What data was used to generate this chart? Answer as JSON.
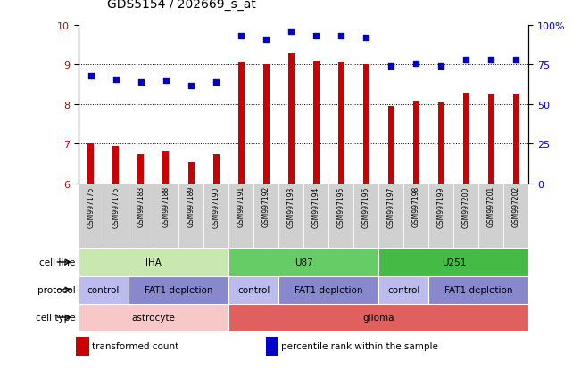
{
  "title": "GDS5154 / 202669_s_at",
  "samples": [
    "GSM997175",
    "GSM997176",
    "GSM997183",
    "GSM997188",
    "GSM997189",
    "GSM997190",
    "GSM997191",
    "GSM997192",
    "GSM997193",
    "GSM997194",
    "GSM997195",
    "GSM997196",
    "GSM997197",
    "GSM997198",
    "GSM997199",
    "GSM997200",
    "GSM997201",
    "GSM997202"
  ],
  "bar_values": [
    7.0,
    6.95,
    6.75,
    6.8,
    6.55,
    6.75,
    9.05,
    9.0,
    9.3,
    9.1,
    9.05,
    9.0,
    7.95,
    8.1,
    8.05,
    8.3,
    8.25,
    8.25
  ],
  "dot_values": [
    68,
    66,
    64,
    65,
    62,
    64,
    93,
    91,
    96,
    93,
    93,
    92,
    74,
    76,
    74,
    78,
    78,
    78
  ],
  "ylim_left": [
    6,
    10
  ],
  "ylim_right": [
    0,
    100
  ],
  "yticks_left": [
    6,
    7,
    8,
    9,
    10
  ],
  "yticks_right": [
    0,
    25,
    50,
    75,
    100
  ],
  "bar_color": "#cc0000",
  "dot_color": "#0000cc",
  "bg_color": "#ffffff",
  "grid_color": "#000000",
  "sample_bg_color": "#d0d0d0",
  "cell_line_groups": [
    {
      "label": "IHA",
      "start": 0,
      "end": 6,
      "color": "#c8e8b0"
    },
    {
      "label": "U87",
      "start": 6,
      "end": 12,
      "color": "#66cc66"
    },
    {
      "label": "U251",
      "start": 12,
      "end": 18,
      "color": "#44bb44"
    }
  ],
  "protocol_groups": [
    {
      "label": "control",
      "start": 0,
      "end": 2,
      "color": "#bbbbee"
    },
    {
      "label": "FAT1 depletion",
      "start": 2,
      "end": 6,
      "color": "#8888cc"
    },
    {
      "label": "control",
      "start": 6,
      "end": 8,
      "color": "#bbbbee"
    },
    {
      "label": "FAT1 depletion",
      "start": 8,
      "end": 12,
      "color": "#8888cc"
    },
    {
      "label": "control",
      "start": 12,
      "end": 14,
      "color": "#bbbbee"
    },
    {
      "label": "FAT1 depletion",
      "start": 14,
      "end": 18,
      "color": "#8888cc"
    }
  ],
  "cell_type_groups": [
    {
      "label": "astrocyte",
      "start": 0,
      "end": 6,
      "color": "#f8c8c8"
    },
    {
      "label": "glioma",
      "start": 6,
      "end": 18,
      "color": "#e06060"
    }
  ],
  "legend_items": [
    {
      "label": "transformed count",
      "color": "#cc0000"
    },
    {
      "label": "percentile rank within the sample",
      "color": "#0000cc"
    }
  ]
}
